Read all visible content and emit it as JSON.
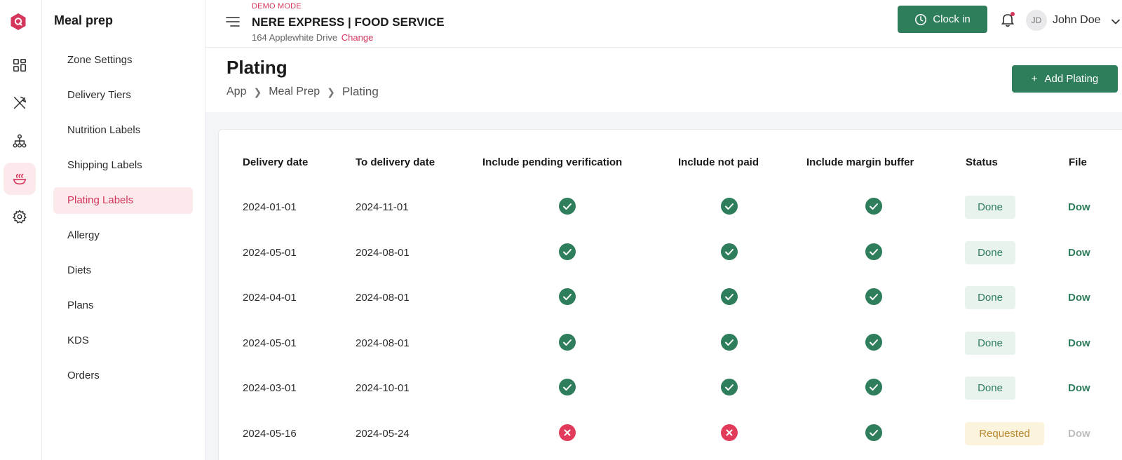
{
  "rail": {
    "items": [
      {
        "icon": "dashboard-icon",
        "active": false
      },
      {
        "icon": "utensils-icon",
        "active": false
      },
      {
        "icon": "hierarchy-icon",
        "active": false
      },
      {
        "icon": "meal-bowl-icon",
        "active": true
      },
      {
        "icon": "gear-icon",
        "active": false
      }
    ]
  },
  "sidebar": {
    "title": "Meal prep",
    "items": [
      {
        "label": "Zone Settings"
      },
      {
        "label": "Delivery Tiers"
      },
      {
        "label": "Nutrition Labels"
      },
      {
        "label": "Shipping Labels"
      },
      {
        "label": "Plating Labels",
        "active": true
      },
      {
        "label": "Allergy"
      },
      {
        "label": "Diets"
      },
      {
        "label": "Plans"
      },
      {
        "label": "KDS"
      },
      {
        "label": "Orders"
      }
    ]
  },
  "topbar": {
    "demo_mode": "DEMO MODE",
    "business_name": "NERE EXPRESS | FOOD SERVICE",
    "address": "164 Applewhite Drive",
    "change_link": "Change",
    "clock_in": "Clock in",
    "user_initials": "JD",
    "user_name": "John Doe"
  },
  "page": {
    "title": "Plating",
    "add_button": "Add Plating",
    "breadcrumbs": [
      "App",
      "Meal Prep",
      "Plating"
    ]
  },
  "table": {
    "columns": [
      "Delivery date",
      "To delivery date",
      "Include pending verification",
      "Include not paid",
      "Include margin buffer",
      "Status",
      "File"
    ],
    "rows": [
      {
        "delivery_date": "2024-01-01",
        "to_delivery_date": "2024-11-01",
        "pending": true,
        "not_paid": true,
        "margin": true,
        "status": "Done",
        "file": "Dow"
      },
      {
        "delivery_date": "2024-05-01",
        "to_delivery_date": "2024-08-01",
        "pending": true,
        "not_paid": true,
        "margin": true,
        "status": "Done",
        "file": "Dow"
      },
      {
        "delivery_date": "2024-04-01",
        "to_delivery_date": "2024-08-01",
        "pending": true,
        "not_paid": true,
        "margin": true,
        "status": "Done",
        "file": "Dow"
      },
      {
        "delivery_date": "2024-05-01",
        "to_delivery_date": "2024-08-01",
        "pending": true,
        "not_paid": true,
        "margin": true,
        "status": "Done",
        "file": "Dow"
      },
      {
        "delivery_date": "2024-03-01",
        "to_delivery_date": "2024-10-01",
        "pending": true,
        "not_paid": true,
        "margin": true,
        "status": "Done",
        "file": "Dow"
      },
      {
        "delivery_date": "2024-05-16",
        "to_delivery_date": "2024-05-24",
        "pending": false,
        "not_paid": false,
        "margin": true,
        "status": "Requested",
        "file": "Dow"
      }
    ]
  },
  "colors": {
    "brand": "#d4365c",
    "primary": "#2e7d5b",
    "error": "#e23a5a",
    "pending": "#b8892f"
  }
}
